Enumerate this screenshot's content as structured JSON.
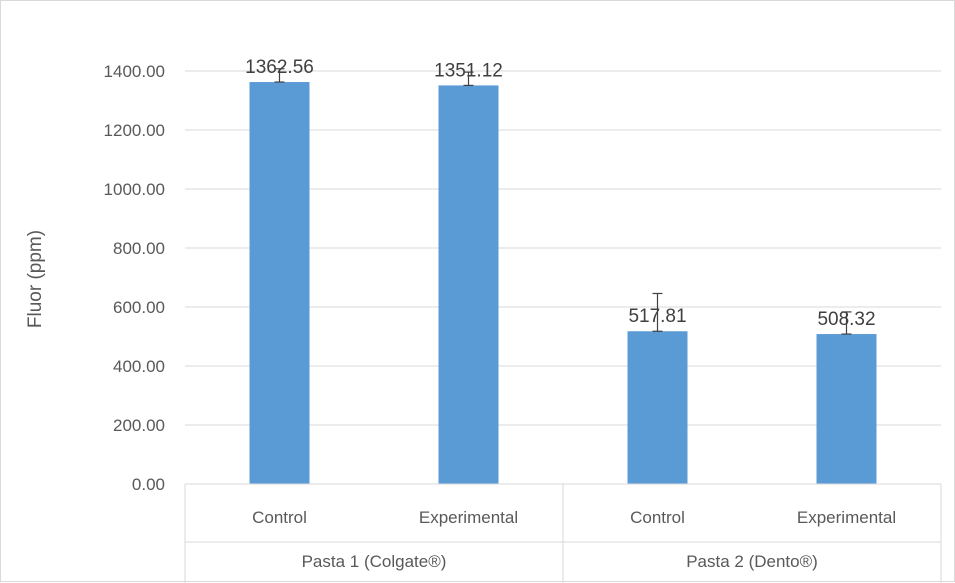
{
  "chart_data": {
    "type": "bar",
    "ylabel": "Fluor (ppm)",
    "ylim": [
      0,
      1400
    ],
    "ytick_step": 200,
    "ytick_labels": [
      "0.00",
      "200.00",
      "400.00",
      "600.00",
      "800.00",
      "1000.00",
      "1200.00",
      "1400.00"
    ],
    "grid": true,
    "legend": "none",
    "groups": [
      {
        "label": "Pasta 1 (Colgate®)",
        "bars": [
          {
            "label": "Control",
            "value": 1362.56,
            "value_label": "1362.56",
            "error": 45
          },
          {
            "label": "Experimental",
            "value": 1351.12,
            "value_label": "1351.12",
            "error": 45
          }
        ]
      },
      {
        "label": "Pasta 2 (Dento®)",
        "bars": [
          {
            "label": "Control",
            "value": 517.81,
            "value_label": "517.81",
            "error": 128
          },
          {
            "label": "Experimental",
            "value": 508.32,
            "value_label": "508.32",
            "error": 75
          }
        ]
      }
    ],
    "colors": {
      "bar": "#5b9bd5",
      "grid": "#d9d9d9",
      "axis_text": "#595959",
      "value_text": "#404040",
      "error_bar": "#404040"
    }
  }
}
